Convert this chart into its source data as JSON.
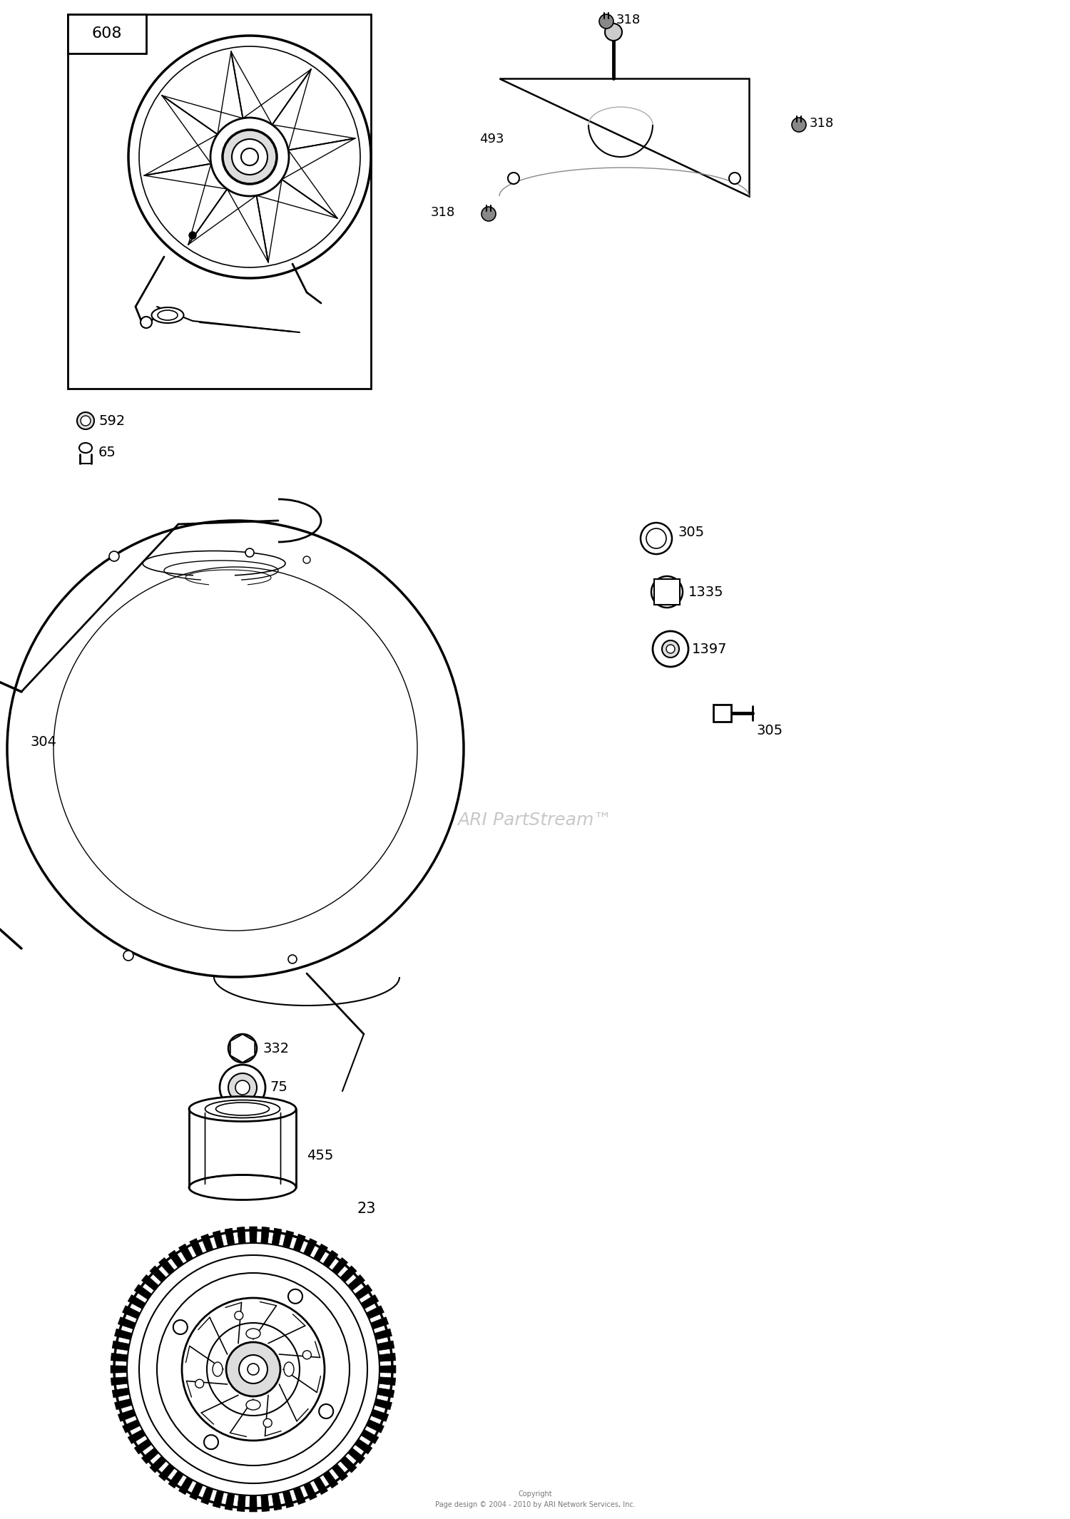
{
  "bg_color": "#ffffff",
  "fig_width": 15.0,
  "fig_height": 21.3,
  "watermark": "ARI PartStream™",
  "copyright_line1": "Copyright",
  "copyright_line2": "Page design © 2004 - 2010 by ARI Network Services, Inc."
}
